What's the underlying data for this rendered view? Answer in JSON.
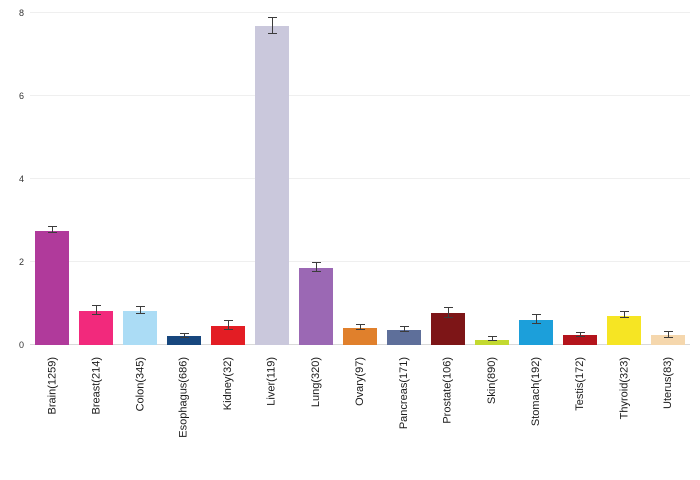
{
  "chart_data": {
    "type": "bar",
    "title": "",
    "xlabel": "",
    "ylabel": "",
    "ylim": [
      0,
      8
    ],
    "yticks": [
      0,
      2,
      4,
      6,
      8
    ],
    "grid": true,
    "legend": "none",
    "error_bar_color": "#3c3c3c",
    "categories": [
      "Brain(1259)",
      "Breast(214)",
      "Colon(345)",
      "Esophagus(686)",
      "Kidney(32)",
      "Liver(119)",
      "Lung(320)",
      "Ovary(97)",
      "Pancreas(171)",
      "Prostate(106)",
      "Skin(890)",
      "Stomach(192)",
      "Testis(172)",
      "Thyroid(323)",
      "Uterus(83)"
    ],
    "values": [
      2.75,
      0.82,
      0.82,
      0.21,
      0.46,
      7.68,
      1.86,
      0.41,
      0.36,
      0.76,
      0.13,
      0.6,
      0.23,
      0.71,
      0.23
    ],
    "errors": [
      0.06,
      0.09,
      0.08,
      0.04,
      0.09,
      0.18,
      0.1,
      0.06,
      0.04,
      0.1,
      0.03,
      0.1,
      0.03,
      0.05,
      0.07
    ],
    "colors": [
      "#b03a9b",
      "#f2297c",
      "#abdcf5",
      "#17477e",
      "#e31d24",
      "#cac8dc",
      "#9b68b4",
      "#e0802c",
      "#5e6f9a",
      "#7d1517",
      "#c3d930",
      "#1c9fda",
      "#b4141c",
      "#f6e523",
      "#f5d7ad"
    ]
  }
}
